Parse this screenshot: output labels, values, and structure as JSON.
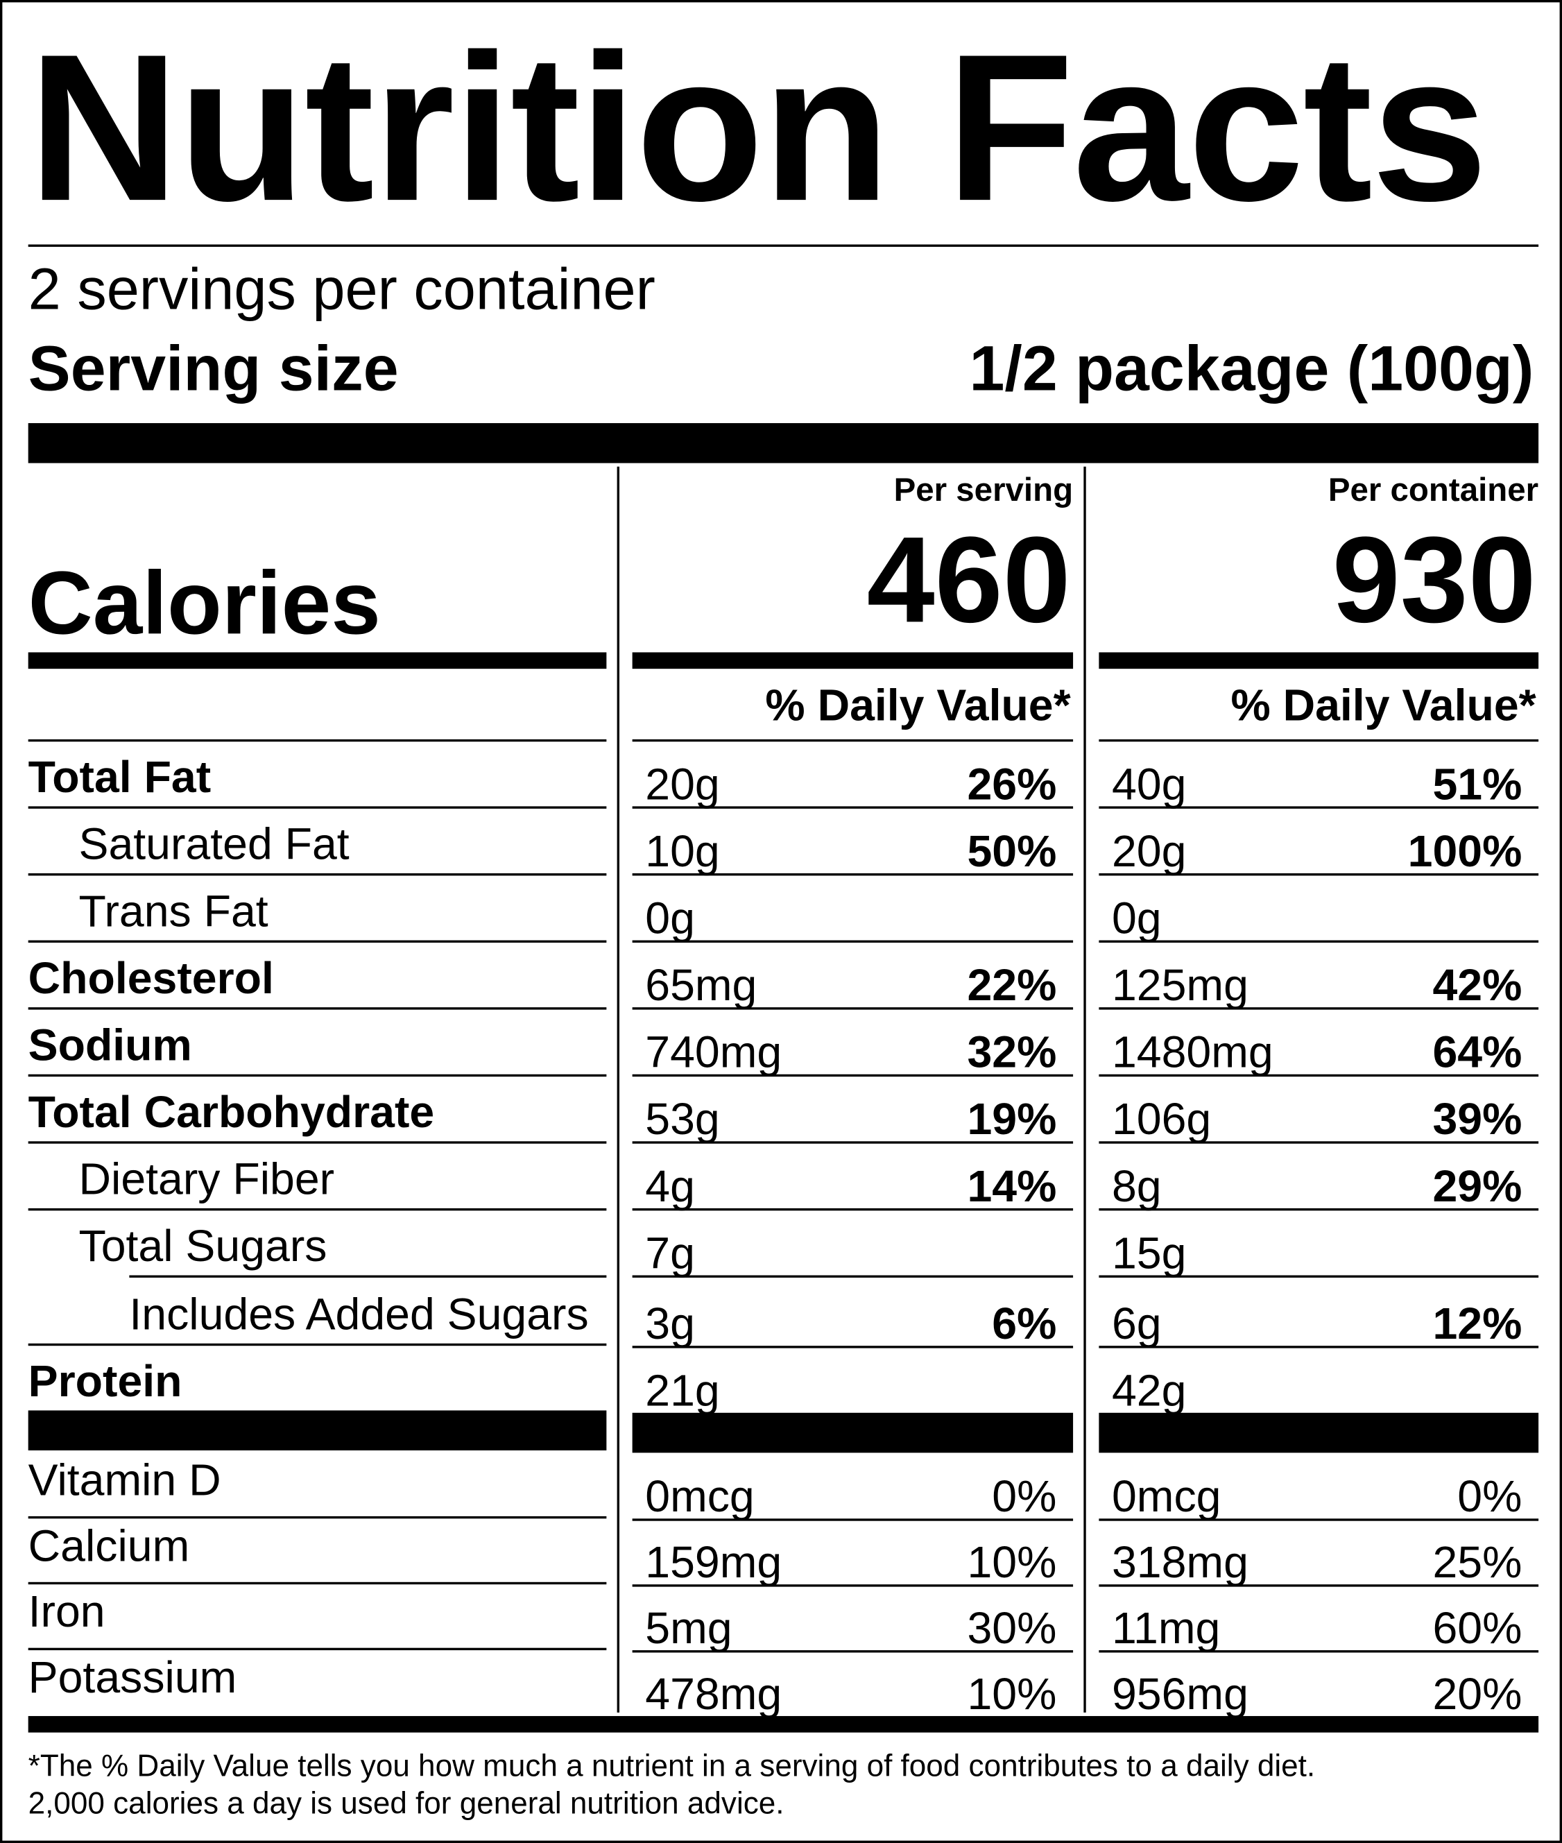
{
  "title": "Nutrition Facts",
  "servings_per_container": "2 servings per container",
  "serving_size": {
    "label": "Serving size",
    "value": "1/2 package (100g)"
  },
  "calories": {
    "label": "Calories",
    "per_serving_label": "Per serving",
    "per_serving": "460",
    "per_container_label": "Per container",
    "per_container": "930"
  },
  "daily_value_header": "% Daily Value*",
  "nutrients": [
    {
      "label": "Total Fat",
      "bold": true,
      "indent": 0,
      "serving_amount": "20g",
      "serving_dv": "26%",
      "container_amount": "40g",
      "container_dv": "51%"
    },
    {
      "label": "Saturated Fat",
      "bold": false,
      "indent": 1,
      "serving_amount": "10g",
      "serving_dv": "50%",
      "container_amount": "20g",
      "container_dv": "100%"
    },
    {
      "label": "Trans Fat",
      "bold": false,
      "indent": 1,
      "serving_amount": "0g",
      "serving_dv": "",
      "container_amount": "0g",
      "container_dv": ""
    },
    {
      "label": "Cholesterol",
      "bold": true,
      "indent": 0,
      "serving_amount": "65mg",
      "serving_dv": "22%",
      "container_amount": "125mg",
      "container_dv": "42%"
    },
    {
      "label": "Sodium",
      "bold": true,
      "indent": 0,
      "serving_amount": "740mg",
      "serving_dv": "32%",
      "container_amount": "1480mg",
      "container_dv": "64%"
    },
    {
      "label": "Total Carbohydrate",
      "bold": true,
      "indent": 0,
      "serving_amount": "53g",
      "serving_dv": "19%",
      "container_amount": "106g",
      "container_dv": "39%"
    },
    {
      "label": "Dietary Fiber",
      "bold": false,
      "indent": 1,
      "serving_amount": "4g",
      "serving_dv": "14%",
      "container_amount": "8g",
      "container_dv": "29%"
    },
    {
      "label": "Total Sugars",
      "bold": false,
      "indent": 1,
      "serving_amount": "7g",
      "serving_dv": "",
      "container_amount": "15g",
      "container_dv": ""
    },
    {
      "label": "Includes Added Sugars",
      "bold": false,
      "indent": 2,
      "serving_amount": "3g",
      "serving_dv": "6%",
      "container_amount": "6g",
      "container_dv": "12%"
    },
    {
      "label": "Protein",
      "bold": true,
      "indent": 0,
      "serving_amount": "21g",
      "serving_dv": "",
      "container_amount": "42g",
      "container_dv": ""
    }
  ],
  "vitamins": [
    {
      "label": "Vitamin D",
      "serving_amount": "0mcg",
      "serving_dv": "0%",
      "container_amount": "0mcg",
      "container_dv": "0%"
    },
    {
      "label": "Calcium",
      "serving_amount": "159mg",
      "serving_dv": "10%",
      "container_amount": "318mg",
      "container_dv": "25%"
    },
    {
      "label": "Iron",
      "serving_amount": "5mg",
      "serving_dv": "30%",
      "container_amount": "11mg",
      "container_dv": "60%"
    },
    {
      "label": "Potassium",
      "serving_amount": "478mg",
      "serving_dv": "10%",
      "container_amount": "956mg",
      "container_dv": "20%"
    }
  ],
  "footnote": [
    "*The % Daily Value tells you how much a nutrient in a serving of food contributes to a daily diet.",
    "2,000 calories a day is used for general nutrition advice."
  ]
}
